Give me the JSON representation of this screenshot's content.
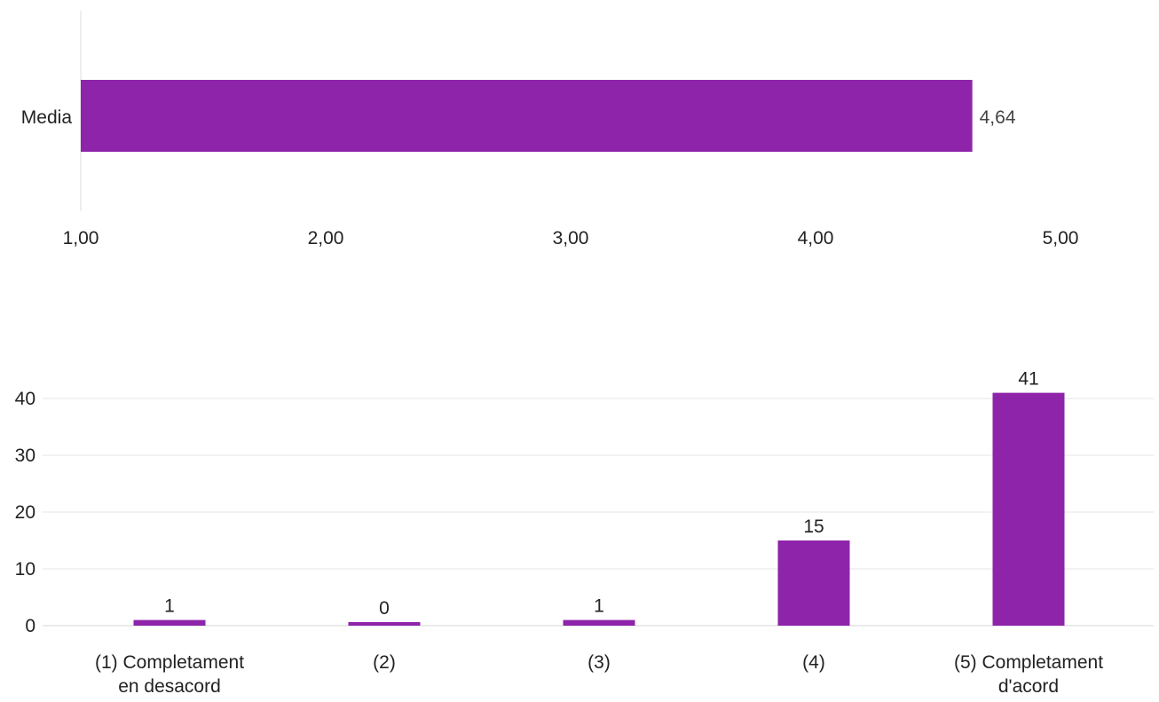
{
  "colors": {
    "bar": "#8e24aa",
    "grid": "#e6e6e6",
    "axis_text": "#222222",
    "value_text": "#444444"
  },
  "chart_data": [
    {
      "type": "bar",
      "orientation": "horizontal",
      "categories": [
        "Media"
      ],
      "values": [
        4.64
      ],
      "value_labels": [
        "4,64"
      ],
      "xlim": [
        1,
        5
      ],
      "x_ticks": [
        1,
        2,
        3,
        4,
        5
      ],
      "x_tick_labels": [
        "1,00",
        "2,00",
        "3,00",
        "4,00",
        "5,00"
      ],
      "title": "",
      "xlabel": "",
      "ylabel": "",
      "grid": false
    },
    {
      "type": "bar",
      "orientation": "vertical",
      "categories": [
        "(1) Completament en desacord",
        "(2)",
        "(3)",
        "(4)",
        "(5) Completament d'acord"
      ],
      "category_lines": [
        [
          "(1) Completament",
          "en desacord"
        ],
        [
          "(2)"
        ],
        [
          "(3)"
        ],
        [
          "(4)"
        ],
        [
          "(5) Completament",
          "d'acord"
        ]
      ],
      "values": [
        1,
        0,
        1,
        15,
        41
      ],
      "value_labels": [
        "1",
        "0",
        "1",
        "15",
        "41"
      ],
      "ylim": [
        0,
        41
      ],
      "y_ticks": [
        0,
        10,
        20,
        30,
        40
      ],
      "y_tick_labels": [
        "0",
        "10",
        "20",
        "30",
        "40"
      ],
      "title": "",
      "xlabel": "",
      "ylabel": "",
      "grid": true
    }
  ]
}
